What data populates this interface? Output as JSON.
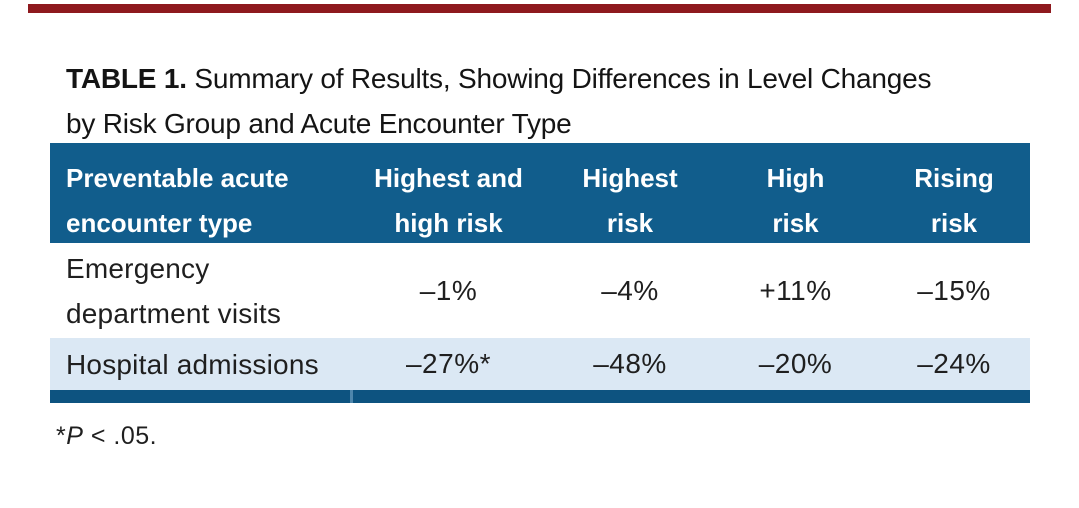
{
  "colors": {
    "red_bar": "#8e191e",
    "header_blue": "#115d8c",
    "row_alt": "#dbe8f4",
    "bottom_bar": "#0d5380",
    "seam": "#4e86ac"
  },
  "title": {
    "label": "TABLE 1.",
    "line1": "Summary of Results, Showing Differences in Level Changes",
    "line2": "by Risk Group and Acute Encounter Type"
  },
  "table": {
    "columns": [
      {
        "lines": [
          "Preventable acute",
          "encounter type"
        ],
        "align": "left"
      },
      {
        "lines": [
          "Highest and",
          "high risk"
        ],
        "align": "center"
      },
      {
        "lines": [
          "Highest",
          "risk"
        ],
        "align": "center"
      },
      {
        "lines": [
          "High",
          "risk"
        ],
        "align": "center"
      },
      {
        "lines": [
          "Rising",
          "risk"
        ],
        "align": "center"
      }
    ],
    "rows": [
      {
        "label_lines": [
          "Emergency",
          "department visits"
        ],
        "values": [
          "–1%",
          "–4%",
          "+11%",
          "–15%"
        ]
      },
      {
        "label_lines": [
          "Hospital admissions"
        ],
        "values": [
          "–27%*",
          "–48%",
          "–20%",
          "–24%"
        ]
      }
    ]
  },
  "footnote": {
    "star": "*",
    "p": "P",
    "rest": " < .05."
  }
}
